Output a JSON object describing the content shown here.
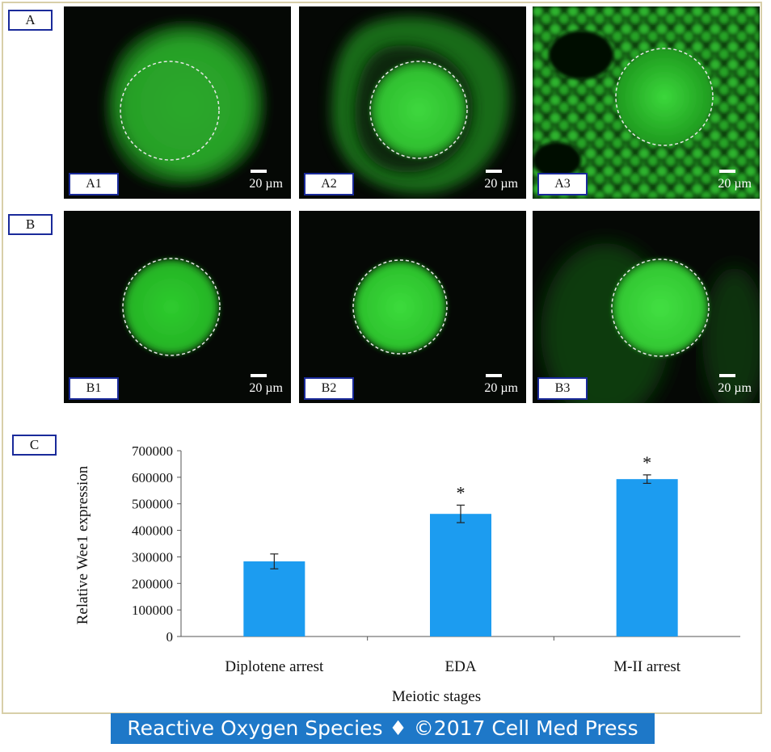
{
  "section_labels": {
    "a": "A",
    "b": "B",
    "c": "C"
  },
  "panels": [
    {
      "id": "a1",
      "label": "A1",
      "scale": "20 µm"
    },
    {
      "id": "a2",
      "label": "A2",
      "scale": "20 µm"
    },
    {
      "id": "a3",
      "label": "A3",
      "scale": "20 µm"
    },
    {
      "id": "b1",
      "label": "B1",
      "scale": "20 µm"
    },
    {
      "id": "b2",
      "label": "B2",
      "scale": "20 µm"
    },
    {
      "id": "b3",
      "label": "B3",
      "scale": "20 µm"
    }
  ],
  "colors": {
    "bar": "#1c9cf0",
    "fluorescence": "#2fd12f",
    "caption_bg": "#1e78c8",
    "label_border": "#1a2a9a"
  },
  "chart_data": {
    "type": "bar",
    "categories": [
      "Diplotene arrest",
      "EDA",
      "M-II arrest"
    ],
    "values": [
      283000,
      462000,
      593000
    ],
    "errors": [
      28000,
      33000,
      16000
    ],
    "significance": [
      "",
      "*",
      "*"
    ],
    "ylim": [
      0,
      700000
    ],
    "yticks": [
      "0",
      "100000",
      "200000",
      "300000",
      "400000",
      "500000",
      "600000",
      "700000"
    ],
    "xlabel": "Meiotic stages",
    "ylabel": "Relative Wee1 expression",
    "grid": false
  },
  "caption": "Reactive Oxygen Species ♦ ©2017 Cell Med Press"
}
